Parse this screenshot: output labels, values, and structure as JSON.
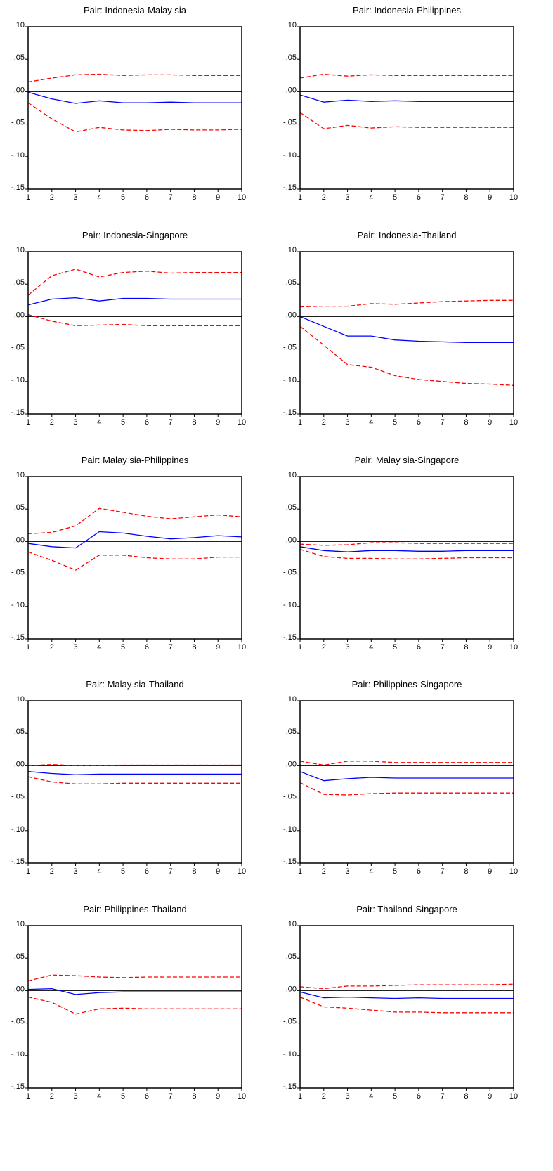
{
  "colors": {
    "irf": "#0000ff",
    "band": "#ff0000",
    "zero": "#000000",
    "frame": "#000000"
  },
  "chart_data": [
    {
      "type": "line",
      "title": "Pair:  Indonesia-Malay sia",
      "x": [
        1,
        2,
        3,
        4,
        5,
        6,
        7,
        8,
        9,
        10
      ],
      "ylim": [
        -0.15,
        0.1
      ],
      "yticks": [
        ".10",
        ".05",
        ".00",
        "-.05",
        "-.10",
        "-.15"
      ],
      "xticks": [
        "1",
        "2",
        "3",
        "4",
        "5",
        "6",
        "7",
        "8",
        "9",
        "10"
      ],
      "series": [
        {
          "role": "lower",
          "style": "dashed",
          "values": [
            -0.017,
            -0.042,
            -0.062,
            -0.055,
            -0.059,
            -0.06,
            -0.058,
            -0.059,
            -0.059,
            -0.058
          ]
        },
        {
          "role": "irf",
          "style": "solid",
          "values": [
            -0.001,
            -0.011,
            -0.018,
            -0.014,
            -0.017,
            -0.017,
            -0.016,
            -0.017,
            -0.017,
            -0.017
          ]
        },
        {
          "role": "upper",
          "style": "dashed",
          "values": [
            0.015,
            0.021,
            0.026,
            0.027,
            0.025,
            0.026,
            0.026,
            0.025,
            0.025,
            0.025
          ]
        }
      ]
    },
    {
      "type": "line",
      "title": "Pair:  Indonesia-Philippines",
      "x": [
        1,
        2,
        3,
        4,
        5,
        6,
        7,
        8,
        9,
        10
      ],
      "ylim": [
        -0.15,
        0.1
      ],
      "yticks": [
        ".10",
        ".05",
        ".00",
        "-.05",
        "-.10",
        "-.15"
      ],
      "xticks": [
        "1",
        "2",
        "3",
        "4",
        "5",
        "6",
        "7",
        "8",
        "9",
        "10"
      ],
      "series": [
        {
          "role": "lower",
          "style": "dashed",
          "values": [
            -0.032,
            -0.057,
            -0.052,
            -0.056,
            -0.054,
            -0.055,
            -0.055,
            -0.055,
            -0.055,
            -0.055
          ]
        },
        {
          "role": "irf",
          "style": "solid",
          "values": [
            -0.005,
            -0.016,
            -0.013,
            -0.015,
            -0.014,
            -0.015,
            -0.015,
            -0.015,
            -0.015,
            -0.015
          ]
        },
        {
          "role": "upper",
          "style": "dashed",
          "values": [
            0.021,
            0.027,
            0.024,
            0.026,
            0.025,
            0.025,
            0.025,
            0.025,
            0.025,
            0.025
          ]
        }
      ]
    },
    {
      "type": "line",
      "title": "Pair:  Indonesia-Singapore",
      "x": [
        1,
        2,
        3,
        4,
        5,
        6,
        7,
        8,
        9,
        10
      ],
      "ylim": [
        -0.15,
        0.1
      ],
      "yticks": [
        ".10",
        ".05",
        ".00",
        "-.05",
        "-.10",
        "-.15"
      ],
      "xticks": [
        "1",
        "2",
        "3",
        "4",
        "5",
        "6",
        "7",
        "8",
        "9",
        "10"
      ],
      "series": [
        {
          "role": "lower",
          "style": "dashed",
          "values": [
            0.003,
            -0.007,
            -0.014,
            -0.013,
            -0.012,
            -0.014,
            -0.014,
            -0.014,
            -0.014,
            -0.014
          ]
        },
        {
          "role": "irf",
          "style": "solid",
          "values": [
            0.018,
            0.027,
            0.029,
            0.024,
            0.028,
            0.028,
            0.027,
            0.027,
            0.027,
            0.027
          ]
        },
        {
          "role": "upper",
          "style": "dashed",
          "values": [
            0.033,
            0.063,
            0.073,
            0.061,
            0.068,
            0.07,
            0.067,
            0.068,
            0.068,
            0.068
          ]
        }
      ]
    },
    {
      "type": "line",
      "title": "Pair:  Indonesia-Thailand",
      "x": [
        1,
        2,
        3,
        4,
        5,
        6,
        7,
        8,
        9,
        10
      ],
      "ylim": [
        -0.15,
        0.1
      ],
      "yticks": [
        ".10",
        ".05",
        ".00",
        "-.05",
        "-.10",
        "-.15"
      ],
      "xticks": [
        "1",
        "2",
        "3",
        "4",
        "5",
        "6",
        "7",
        "8",
        "9",
        "10"
      ],
      "series": [
        {
          "role": "lower",
          "style": "dashed",
          "values": [
            -0.015,
            -0.044,
            -0.074,
            -0.078,
            -0.091,
            -0.097,
            -0.1,
            -0.103,
            -0.104,
            -0.106
          ]
        },
        {
          "role": "irf",
          "style": "solid",
          "values": [
            0.0,
            -0.015,
            -0.03,
            -0.03,
            -0.036,
            -0.038,
            -0.039,
            -0.04,
            -0.04,
            -0.04
          ]
        },
        {
          "role": "upper",
          "style": "dashed",
          "values": [
            0.015,
            0.016,
            0.016,
            0.02,
            0.019,
            0.021,
            0.023,
            0.024,
            0.025,
            0.025
          ]
        }
      ]
    },
    {
      "type": "line",
      "title": "Pair:  Malay sia-Philippines",
      "x": [
        1,
        2,
        3,
        4,
        5,
        6,
        7,
        8,
        9,
        10
      ],
      "ylim": [
        -0.15,
        0.1
      ],
      "yticks": [
        ".10",
        ".05",
        ".00",
        "-.05",
        "-.10",
        "-.15"
      ],
      "xticks": [
        "1",
        "2",
        "3",
        "4",
        "5",
        "6",
        "7",
        "8",
        "9",
        "10"
      ],
      "series": [
        {
          "role": "lower",
          "style": "dashed",
          "values": [
            -0.016,
            -0.029,
            -0.044,
            -0.021,
            -0.021,
            -0.025,
            -0.027,
            -0.027,
            -0.024,
            -0.024
          ]
        },
        {
          "role": "irf",
          "style": "solid",
          "values": [
            -0.003,
            -0.008,
            -0.01,
            0.015,
            0.013,
            0.008,
            0.004,
            0.006,
            0.009,
            0.007
          ]
        },
        {
          "role": "upper",
          "style": "dashed",
          "values": [
            0.012,
            0.014,
            0.024,
            0.051,
            0.045,
            0.039,
            0.035,
            0.038,
            0.041,
            0.038
          ]
        }
      ]
    },
    {
      "type": "line",
      "title": "Pair:  Malay sia-Singapore",
      "x": [
        1,
        2,
        3,
        4,
        5,
        6,
        7,
        8,
        9,
        10
      ],
      "ylim": [
        -0.15,
        0.1
      ],
      "yticks": [
        ".10",
        ".05",
        ".00",
        "-.05",
        "-.10",
        "-.15"
      ],
      "xticks": [
        "1",
        "2",
        "3",
        "4",
        "5",
        "6",
        "7",
        "8",
        "9",
        "10"
      ],
      "series": [
        {
          "role": "lower",
          "style": "dashed",
          "values": [
            -0.012,
            -0.023,
            -0.026,
            -0.026,
            -0.027,
            -0.027,
            -0.026,
            -0.025,
            -0.025,
            -0.025
          ]
        },
        {
          "role": "irf",
          "style": "solid",
          "values": [
            -0.008,
            -0.014,
            -0.016,
            -0.014,
            -0.014,
            -0.015,
            -0.015,
            -0.014,
            -0.014,
            -0.014
          ]
        },
        {
          "role": "upper",
          "style": "dashed",
          "values": [
            -0.004,
            -0.006,
            -0.005,
            -0.002,
            -0.002,
            -0.003,
            -0.003,
            -0.003,
            -0.003,
            -0.003
          ]
        }
      ]
    },
    {
      "type": "line",
      "title": "Pair:  Malay sia-Thailand",
      "x": [
        1,
        2,
        3,
        4,
        5,
        6,
        7,
        8,
        9,
        10
      ],
      "ylim": [
        -0.15,
        0.1
      ],
      "yticks": [
        ".10",
        ".05",
        ".00",
        "-.05",
        "-.10",
        "-.15"
      ],
      "xticks": [
        "1",
        "2",
        "3",
        "4",
        "5",
        "6",
        "7",
        "8",
        "9",
        "10"
      ],
      "series": [
        {
          "role": "lower",
          "style": "dashed",
          "values": [
            -0.017,
            -0.025,
            -0.028,
            -0.028,
            -0.027,
            -0.027,
            -0.027,
            -0.027,
            -0.027,
            -0.027
          ]
        },
        {
          "role": "irf",
          "style": "solid",
          "values": [
            -0.009,
            -0.012,
            -0.014,
            -0.013,
            -0.013,
            -0.013,
            -0.013,
            -0.013,
            -0.013,
            -0.013
          ]
        },
        {
          "role": "upper",
          "style": "dashed",
          "values": [
            0.0,
            0.002,
            0.0,
            0.0,
            0.001,
            0.001,
            0.001,
            0.001,
            0.001,
            0.001
          ]
        }
      ]
    },
    {
      "type": "line",
      "title": "Pair:  Philippines-Singapore",
      "x": [
        1,
        2,
        3,
        4,
        5,
        6,
        7,
        8,
        9,
        10
      ],
      "ylim": [
        -0.15,
        0.1
      ],
      "yticks": [
        ".10",
        ".05",
        ".00",
        "-.05",
        "-.10",
        "-.15"
      ],
      "xticks": [
        "1",
        "2",
        "3",
        "4",
        "5",
        "6",
        "7",
        "8",
        "9",
        "10"
      ],
      "series": [
        {
          "role": "lower",
          "style": "dashed",
          "values": [
            -0.026,
            -0.044,
            -0.045,
            -0.043,
            -0.042,
            -0.042,
            -0.042,
            -0.042,
            -0.042,
            -0.042
          ]
        },
        {
          "role": "irf",
          "style": "solid",
          "values": [
            -0.009,
            -0.023,
            -0.02,
            -0.018,
            -0.019,
            -0.019,
            -0.019,
            -0.019,
            -0.019,
            -0.019
          ]
        },
        {
          "role": "upper",
          "style": "dashed",
          "values": [
            0.007,
            0.001,
            0.007,
            0.007,
            0.005,
            0.005,
            0.005,
            0.005,
            0.005,
            0.005
          ]
        }
      ]
    },
    {
      "type": "line",
      "title": "Pair:  Philippines-Thailand",
      "x": [
        1,
        2,
        3,
        4,
        5,
        6,
        7,
        8,
        9,
        10
      ],
      "ylim": [
        -0.15,
        0.1
      ],
      "yticks": [
        ".10",
        ".05",
        ".00",
        "-.05",
        "-.10",
        "-.15"
      ],
      "xticks": [
        "1",
        "2",
        "3",
        "4",
        "5",
        "6",
        "7",
        "8",
        "9",
        "10"
      ],
      "series": [
        {
          "role": "lower",
          "style": "dashed",
          "values": [
            -0.01,
            -0.018,
            -0.036,
            -0.028,
            -0.027,
            -0.028,
            -0.028,
            -0.028,
            -0.028,
            -0.028
          ]
        },
        {
          "role": "irf",
          "style": "solid",
          "values": [
            0.002,
            0.003,
            -0.006,
            -0.003,
            -0.002,
            -0.002,
            -0.002,
            -0.002,
            -0.002,
            -0.002
          ]
        },
        {
          "role": "upper",
          "style": "dashed",
          "values": [
            0.015,
            0.024,
            0.023,
            0.021,
            0.02,
            0.021,
            0.021,
            0.021,
            0.021,
            0.021
          ]
        }
      ]
    },
    {
      "type": "line",
      "title": "Pair:  Thailand-Singapore",
      "x": [
        1,
        2,
        3,
        4,
        5,
        6,
        7,
        8,
        9,
        10
      ],
      "ylim": [
        -0.15,
        0.1
      ],
      "yticks": [
        ".10",
        ".05",
        ".00",
        "-.05",
        "-.10",
        "-.15"
      ],
      "xticks": [
        "1",
        "2",
        "3",
        "4",
        "5",
        "6",
        "7",
        "8",
        "9",
        "10"
      ],
      "series": [
        {
          "role": "lower",
          "style": "dashed",
          "values": [
            -0.01,
            -0.025,
            -0.027,
            -0.03,
            -0.033,
            -0.033,
            -0.034,
            -0.034,
            -0.034,
            -0.034
          ]
        },
        {
          "role": "irf",
          "style": "solid",
          "values": [
            -0.002,
            -0.011,
            -0.01,
            -0.011,
            -0.012,
            -0.011,
            -0.012,
            -0.012,
            -0.012,
            -0.012
          ]
        },
        {
          "role": "upper",
          "style": "dashed",
          "values": [
            0.006,
            0.003,
            0.007,
            0.007,
            0.008,
            0.009,
            0.009,
            0.009,
            0.009,
            0.01
          ]
        }
      ]
    }
  ]
}
